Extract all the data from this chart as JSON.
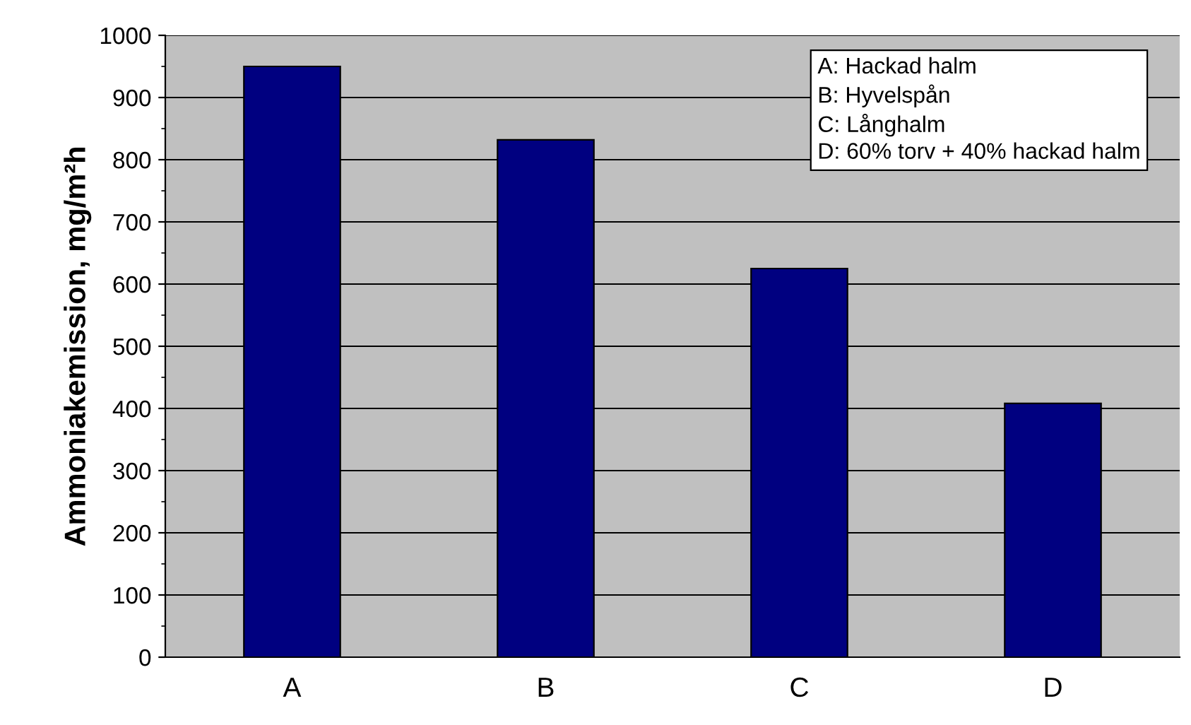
{
  "chart_data": {
    "type": "bar",
    "ylabel": "Ammoniakemission, mg/m²h",
    "categories": [
      "A",
      "B",
      "C",
      "D"
    ],
    "values": [
      950,
      832,
      625,
      408
    ],
    "color": "#000080",
    "ylim": [
      0,
      1000
    ],
    "yticks": [
      0,
      100,
      200,
      300,
      400,
      500,
      600,
      700,
      800,
      900,
      1000
    ],
    "grid": "y",
    "annotations": [
      "A: Hackad halm",
      "B: Hyvelspån",
      "C: Långhalm",
      "D: 60% torv + 40% hackad halm"
    ]
  }
}
